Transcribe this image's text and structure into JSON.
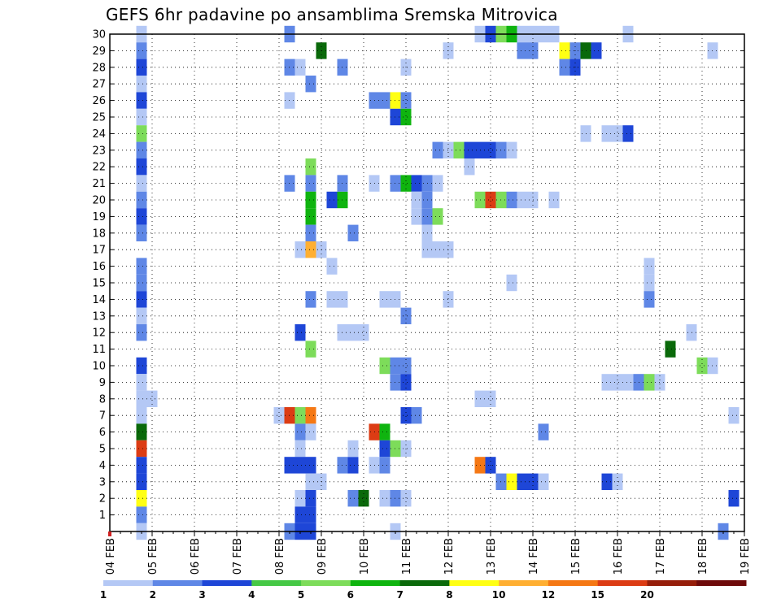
{
  "chart_data": {
    "type": "heatmap",
    "title": "GEFS 6hr padavine po ansamblima Sremska Mitrovica",
    "xlabel": "",
    "ylabel": "",
    "x_tick_labels": [
      "04 FEB",
      "05 FEB",
      "06 FEB",
      "07 FEB",
      "08 FEB",
      "09 FEB",
      "10 FEB",
      "11 FEB",
      "12 FEB",
      "13 FEB",
      "14 FEB",
      "15 FEB",
      "16 FEB",
      "17 FEB",
      "18 FEB",
      "19 FEB"
    ],
    "y_tick_labels": [
      "1",
      "2",
      "3",
      "4",
      "5",
      "6",
      "7",
      "8",
      "9",
      "10",
      "11",
      "12",
      "13",
      "14",
      "15",
      "16",
      "17",
      "18",
      "19",
      "20",
      "21",
      "22",
      "23",
      "24",
      "25",
      "26",
      "27",
      "28",
      "29",
      "30"
    ],
    "x_range_days": [
      0,
      15
    ],
    "y_range": [
      0,
      30
    ],
    "colorbar": {
      "boundaries": [
        "1",
        "2",
        "3",
        "4",
        "5",
        "6",
        "7",
        "8",
        "10",
        "12",
        "15",
        "20"
      ],
      "colors": [
        "#b4c8f5",
        "#5f87e6",
        "#1e46d7",
        "#46c846",
        "#7ddc5a",
        "#0fb40f",
        "#0a690a",
        "#ffff14",
        "#ffaf32",
        "#f57814",
        "#dc3c14",
        "#961e0a",
        "#6e0a0a"
      ]
    },
    "grid": true,
    "cells": [
      {
        "x": 0.75,
        "y": 30,
        "c": 1
      },
      {
        "x": 0.75,
        "y": 29,
        "c": 2
      },
      {
        "x": 0.75,
        "y": 28,
        "c": 3
      },
      {
        "x": 0.75,
        "y": 27,
        "c": 1
      },
      {
        "x": 0.75,
        "y": 26,
        "c": 3
      },
      {
        "x": 0.75,
        "y": 25,
        "c": 1
      },
      {
        "x": 0.75,
        "y": 24,
        "c": 5
      },
      {
        "x": 0.75,
        "y": 23,
        "c": 2
      },
      {
        "x": 0.75,
        "y": 22,
        "c": 3
      },
      {
        "x": 0.75,
        "y": 21,
        "c": 1
      },
      {
        "x": 0.75,
        "y": 20,
        "c": 2
      },
      {
        "x": 0.75,
        "y": 19,
        "c": 3
      },
      {
        "x": 0.75,
        "y": 18,
        "c": 2
      },
      {
        "x": 0.75,
        "y": 16,
        "c": 2
      },
      {
        "x": 0.75,
        "y": 15,
        "c": 2
      },
      {
        "x": 0.75,
        "y": 14,
        "c": 3
      },
      {
        "x": 0.75,
        "y": 13,
        "c": 1
      },
      {
        "x": 0.75,
        "y": 12,
        "c": 2
      },
      {
        "x": 0.75,
        "y": 10,
        "c": 3
      },
      {
        "x": 0.75,
        "y": 9,
        "c": 1
      },
      {
        "x": 0.75,
        "y": 8,
        "c": 1
      },
      {
        "x": 1.0,
        "y": 8,
        "c": 1
      },
      {
        "x": 0.75,
        "y": 7,
        "c": 1
      },
      {
        "x": 0.75,
        "y": 6,
        "c": 7
      },
      {
        "x": 0.75,
        "y": 5,
        "c": 11
      },
      {
        "x": 0.75,
        "y": 4,
        "c": 3
      },
      {
        "x": 0.75,
        "y": 3,
        "c": 3
      },
      {
        "x": 0.75,
        "y": 2,
        "c": 8
      },
      {
        "x": 0.75,
        "y": 1,
        "c": 2
      },
      {
        "x": 0.75,
        "y": 0,
        "c": 1
      },
      {
        "x": 4.25,
        "y": 30,
        "c": 2
      },
      {
        "x": 4.25,
        "y": 28,
        "c": 2
      },
      {
        "x": 4.5,
        "y": 28,
        "c": 1
      },
      {
        "x": 4.75,
        "y": 27,
        "c": 2
      },
      {
        "x": 4.25,
        "y": 26,
        "c": 1
      },
      {
        "x": 5.0,
        "y": 29,
        "c": 7
      },
      {
        "x": 4.75,
        "y": 22,
        "c": 5
      },
      {
        "x": 4.25,
        "y": 21,
        "c": 2
      },
      {
        "x": 4.75,
        "y": 21,
        "c": 2
      },
      {
        "x": 4.75,
        "y": 20,
        "c": 6
      },
      {
        "x": 4.75,
        "y": 19,
        "c": 6
      },
      {
        "x": 4.75,
        "y": 18,
        "c": 2
      },
      {
        "x": 4.5,
        "y": 17,
        "c": 1
      },
      {
        "x": 4.75,
        "y": 17,
        "c": 9
      },
      {
        "x": 5.0,
        "y": 17,
        "c": 1
      },
      {
        "x": 4.75,
        "y": 14,
        "c": 2
      },
      {
        "x": 4.5,
        "y": 12,
        "c": 3
      },
      {
        "x": 4.75,
        "y": 11,
        "c": 5
      },
      {
        "x": 4.0,
        "y": 7,
        "c": 1
      },
      {
        "x": 4.25,
        "y": 7,
        "c": 11
      },
      {
        "x": 4.5,
        "y": 7,
        "c": 5
      },
      {
        "x": 4.75,
        "y": 7,
        "c": 10
      },
      {
        "x": 4.5,
        "y": 6,
        "c": 2
      },
      {
        "x": 4.75,
        "y": 6,
        "c": 1
      },
      {
        "x": 4.5,
        "y": 5,
        "c": 1
      },
      {
        "x": 4.25,
        "y": 4,
        "c": 3
      },
      {
        "x": 4.5,
        "y": 4,
        "c": 3
      },
      {
        "x": 4.75,
        "y": 4,
        "c": 3
      },
      {
        "x": 4.75,
        "y": 3,
        "c": 1
      },
      {
        "x": 5.0,
        "y": 3,
        "c": 1
      },
      {
        "x": 4.5,
        "y": 2,
        "c": 1
      },
      {
        "x": 4.75,
        "y": 2,
        "c": 3
      },
      {
        "x": 4.5,
        "y": 1,
        "c": 3
      },
      {
        "x": 4.75,
        "y": 1,
        "c": 3
      },
      {
        "x": 4.25,
        "y": 0,
        "c": 2
      },
      {
        "x": 4.5,
        "y": 0,
        "c": 3
      },
      {
        "x": 4.75,
        "y": 0,
        "c": 3
      },
      {
        "x": 5.5,
        "y": 28,
        "c": 2
      },
      {
        "x": 5.25,
        "y": 20,
        "c": 3
      },
      {
        "x": 5.5,
        "y": 20,
        "c": 6
      },
      {
        "x": 5.5,
        "y": 21,
        "c": 2
      },
      {
        "x": 5.75,
        "y": 18,
        "c": 2
      },
      {
        "x": 5.25,
        "y": 14,
        "c": 1
      },
      {
        "x": 5.5,
        "y": 14,
        "c": 1
      },
      {
        "x": 5.5,
        "y": 12,
        "c": 1
      },
      {
        "x": 5.75,
        "y": 12,
        "c": 1
      },
      {
        "x": 6.0,
        "y": 12,
        "c": 1
      },
      {
        "x": 5.5,
        "y": 4,
        "c": 2
      },
      {
        "x": 5.75,
        "y": 4,
        "c": 3
      },
      {
        "x": 5.75,
        "y": 5,
        "c": 1
      },
      {
        "x": 5.25,
        "y": 16,
        "c": 1
      },
      {
        "x": 5.75,
        "y": 2,
        "c": 2
      },
      {
        "x": 6.0,
        "y": 2,
        "c": 7
      },
      {
        "x": 6.25,
        "y": 26,
        "c": 2
      },
      {
        "x": 6.5,
        "y": 26,
        "c": 2
      },
      {
        "x": 6.75,
        "y": 26,
        "c": 8
      },
      {
        "x": 7.0,
        "y": 26,
        "c": 2
      },
      {
        "x": 6.75,
        "y": 25,
        "c": 3
      },
      {
        "x": 7.0,
        "y": 25,
        "c": 6
      },
      {
        "x": 6.25,
        "y": 21,
        "c": 1
      },
      {
        "x": 6.75,
        "y": 21,
        "c": 2
      },
      {
        "x": 7.0,
        "y": 21,
        "c": 6
      },
      {
        "x": 7.25,
        "y": 21,
        "c": 3
      },
      {
        "x": 7.5,
        "y": 21,
        "c": 2
      },
      {
        "x": 7.75,
        "y": 21,
        "c": 1
      },
      {
        "x": 7.25,
        "y": 20,
        "c": 1
      },
      {
        "x": 7.5,
        "y": 20,
        "c": 2
      },
      {
        "x": 7.25,
        "y": 19,
        "c": 1
      },
      {
        "x": 7.5,
        "y": 19,
        "c": 2
      },
      {
        "x": 7.75,
        "y": 19,
        "c": 5
      },
      {
        "x": 7.5,
        "y": 18,
        "c": 1
      },
      {
        "x": 7.5,
        "y": 17,
        "c": 1
      },
      {
        "x": 7.75,
        "y": 17,
        "c": 1
      },
      {
        "x": 6.5,
        "y": 14,
        "c": 1
      },
      {
        "x": 6.75,
        "y": 14,
        "c": 1
      },
      {
        "x": 7.0,
        "y": 13,
        "c": 2
      },
      {
        "x": 6.5,
        "y": 10,
        "c": 5
      },
      {
        "x": 6.75,
        "y": 10,
        "c": 2
      },
      {
        "x": 7.0,
        "y": 10,
        "c": 2
      },
      {
        "x": 6.75,
        "y": 9,
        "c": 2
      },
      {
        "x": 7.0,
        "y": 9,
        "c": 3
      },
      {
        "x": 7.0,
        "y": 7,
        "c": 3
      },
      {
        "x": 7.25,
        "y": 7,
        "c": 2
      },
      {
        "x": 6.25,
        "y": 6,
        "c": 11
      },
      {
        "x": 6.5,
        "y": 6,
        "c": 6
      },
      {
        "x": 6.5,
        "y": 5,
        "c": 3
      },
      {
        "x": 6.75,
        "y": 5,
        "c": 5
      },
      {
        "x": 7.0,
        "y": 5,
        "c": 1
      },
      {
        "x": 6.25,
        "y": 4,
        "c": 1
      },
      {
        "x": 6.5,
        "y": 4,
        "c": 2
      },
      {
        "x": 6.75,
        "y": 2,
        "c": 2
      },
      {
        "x": 7.0,
        "y": 2,
        "c": 1
      },
      {
        "x": 6.75,
        "y": 0,
        "c": 1
      },
      {
        "x": 6.5,
        "y": 2,
        "c": 1
      },
      {
        "x": 7.0,
        "y": 28,
        "c": 1
      },
      {
        "x": 8.0,
        "y": 29,
        "c": 1
      },
      {
        "x": 8.0,
        "y": 17,
        "c": 1
      },
      {
        "x": 8.0,
        "y": 14,
        "c": 1
      },
      {
        "x": 7.75,
        "y": 23,
        "c": 2
      },
      {
        "x": 8.0,
        "y": 23,
        "c": 1
      },
      {
        "x": 8.25,
        "y": 23,
        "c": 5
      },
      {
        "x": 8.5,
        "y": 23,
        "c": 3
      },
      {
        "x": 8.75,
        "y": 23,
        "c": 3
      },
      {
        "x": 9.0,
        "y": 23,
        "c": 3
      },
      {
        "x": 9.25,
        "y": 23,
        "c": 2
      },
      {
        "x": 9.5,
        "y": 23,
        "c": 1
      },
      {
        "x": 8.5,
        "y": 22,
        "c": 1
      },
      {
        "x": 8.75,
        "y": 20,
        "c": 5
      },
      {
        "x": 9.0,
        "y": 20,
        "c": 11
      },
      {
        "x": 9.25,
        "y": 20,
        "c": 5
      },
      {
        "x": 9.5,
        "y": 20,
        "c": 2
      },
      {
        "x": 9.75,
        "y": 20,
        "c": 1
      },
      {
        "x": 10.0,
        "y": 20,
        "c": 1
      },
      {
        "x": 10.5,
        "y": 20,
        "c": 1
      },
      {
        "x": 8.75,
        "y": 30,
        "c": 1
      },
      {
        "x": 9.0,
        "y": 30,
        "c": 3
      },
      {
        "x": 9.25,
        "y": 30,
        "c": 5
      },
      {
        "x": 9.5,
        "y": 30,
        "c": 6
      },
      {
        "x": 9.75,
        "y": 30,
        "c": 1
      },
      {
        "x": 10.0,
        "y": 30,
        "c": 1
      },
      {
        "x": 10.25,
        "y": 30,
        "c": 1
      },
      {
        "x": 10.5,
        "y": 30,
        "c": 1
      },
      {
        "x": 9.75,
        "y": 29,
        "c": 2
      },
      {
        "x": 10.0,
        "y": 29,
        "c": 2
      },
      {
        "x": 9.5,
        "y": 15,
        "c": 1
      },
      {
        "x": 8.75,
        "y": 8,
        "c": 1
      },
      {
        "x": 9.0,
        "y": 8,
        "c": 1
      },
      {
        "x": 8.75,
        "y": 4,
        "c": 10
      },
      {
        "x": 9.0,
        "y": 4,
        "c": 3
      },
      {
        "x": 9.25,
        "y": 3,
        "c": 2
      },
      {
        "x": 9.5,
        "y": 3,
        "c": 8
      },
      {
        "x": 9.75,
        "y": 3,
        "c": 3
      },
      {
        "x": 10.0,
        "y": 3,
        "c": 3
      },
      {
        "x": 10.25,
        "y": 3,
        "c": 1
      },
      {
        "x": 10.75,
        "y": 29,
        "c": 8
      },
      {
        "x": 11.0,
        "y": 29,
        "c": 2
      },
      {
        "x": 11.25,
        "y": 29,
        "c": 7
      },
      {
        "x": 11.5,
        "y": 29,
        "c": 3
      },
      {
        "x": 10.75,
        "y": 28,
        "c": 2
      },
      {
        "x": 11.0,
        "y": 28,
        "c": 3
      },
      {
        "x": 11.25,
        "y": 24,
        "c": 1
      },
      {
        "x": 11.75,
        "y": 24,
        "c": 1
      },
      {
        "x": 12.0,
        "y": 24,
        "c": 1
      },
      {
        "x": 12.25,
        "y": 24,
        "c": 3
      },
      {
        "x": 12.25,
        "y": 30,
        "c": 1
      },
      {
        "x": 10.25,
        "y": 6,
        "c": 2
      },
      {
        "x": 11.75,
        "y": 9,
        "c": 1
      },
      {
        "x": 12.0,
        "y": 9,
        "c": 1
      },
      {
        "x": 12.25,
        "y": 9,
        "c": 1
      },
      {
        "x": 12.5,
        "y": 9,
        "c": 2
      },
      {
        "x": 12.75,
        "y": 9,
        "c": 5
      },
      {
        "x": 13.0,
        "y": 9,
        "c": 1
      },
      {
        "x": 11.75,
        "y": 3,
        "c": 3
      },
      {
        "x": 12.0,
        "y": 3,
        "c": 1
      },
      {
        "x": 12.75,
        "y": 16,
        "c": 1
      },
      {
        "x": 12.75,
        "y": 15,
        "c": 1
      },
      {
        "x": 12.75,
        "y": 14,
        "c": 2
      },
      {
        "x": 13.25,
        "y": 11,
        "c": 7
      },
      {
        "x": 13.75,
        "y": 12,
        "c": 1
      },
      {
        "x": 14.0,
        "y": 10,
        "c": 5
      },
      {
        "x": 14.25,
        "y": 10,
        "c": 1
      },
      {
        "x": 14.25,
        "y": 29,
        "c": 1
      },
      {
        "x": 14.75,
        "y": 7,
        "c": 1
      },
      {
        "x": 14.75,
        "y": 2,
        "c": 3
      },
      {
        "x": 14.5,
        "y": 0,
        "c": 2
      }
    ]
  }
}
